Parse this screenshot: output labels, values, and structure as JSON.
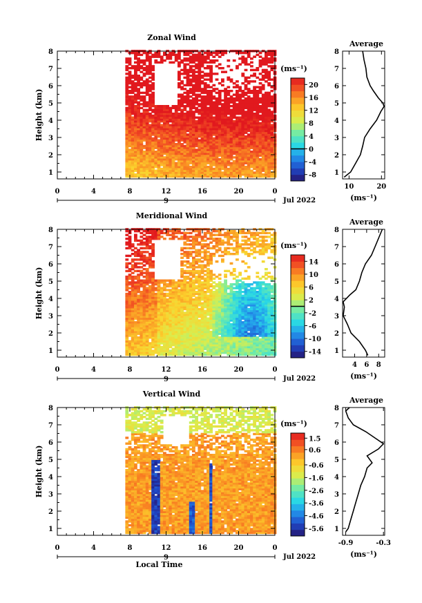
{
  "chart_data": [
    {
      "type": "heatmap",
      "title": "Zonal Wind",
      "ylabel": "Height (km)",
      "unit": "(ms⁻¹)",
      "x_ticks": [
        "0",
        "4",
        "8",
        "12",
        "16",
        "20",
        "0"
      ],
      "xlim": [
        0,
        24
      ],
      "ylim": [
        0.6,
        8
      ],
      "y_ticks": [
        1,
        2,
        3,
        4,
        5,
        6,
        7,
        8
      ],
      "data_start_hour": 7.5,
      "day_label": "9",
      "date_label": "Jul 2022",
      "colorbar": {
        "min": -10,
        "max": 22,
        "tick_values": [
          -8,
          -4,
          0,
          4,
          8,
          12,
          16,
          20
        ],
        "tick_labels": [
          "-8",
          "-4",
          "0",
          "4",
          "8",
          "12",
          "16",
          "20"
        ],
        "zero_line": 0
      },
      "average": {
        "title": "Average",
        "xlabel": "(ms⁻¹)",
        "x_ticks": [
          10,
          20
        ],
        "xlim": [
          8,
          21
        ],
        "height": [
          0.7,
          1.0,
          1.5,
          2.0,
          2.5,
          3.0,
          3.5,
          4.0,
          4.5,
          4.8,
          5.0,
          5.3,
          5.7,
          6.0,
          6.5,
          7.0,
          7.5,
          8.0
        ],
        "value": [
          8.5,
          10.5,
          12.0,
          13.5,
          14.2,
          14.8,
          16.5,
          18.5,
          19.8,
          20.8,
          20.4,
          19.0,
          17.5,
          16.5,
          15.5,
          15.2,
          14.6,
          14.2
        ]
      }
    },
    {
      "type": "heatmap",
      "title": "Meridional Wind",
      "ylabel": "Height (km)",
      "unit": "(ms⁻¹)",
      "x_ticks": [
        "0",
        "4",
        "8",
        "12",
        "16",
        "20",
        "0"
      ],
      "xlim": [
        0,
        24
      ],
      "ylim": [
        0.6,
        8
      ],
      "y_ticks": [
        1,
        2,
        3,
        4,
        5,
        6,
        7,
        8
      ],
      "data_start_hour": 7.5,
      "day_label": "9",
      "date_label": "Jul 2022",
      "colorbar": {
        "min": -16,
        "max": 16,
        "tick_values": [
          -14,
          -10,
          -6,
          -2,
          2,
          6,
          10,
          14
        ],
        "tick_labels": [
          "-14",
          "-10",
          "-6",
          "-2",
          "2",
          "6",
          "10",
          "14"
        ],
        "zero_line": 0
      },
      "average": {
        "title": "Average",
        "xlabel": "(ms⁻¹)",
        "x_ticks": [
          4,
          6,
          8
        ],
        "xlim": [
          2,
          9
        ],
        "height": [
          0.7,
          1.0,
          1.5,
          2.0,
          2.5,
          3.0,
          3.5,
          3.8,
          4.2,
          4.5,
          5.0,
          5.5,
          6.0,
          6.5,
          7.0,
          7.5,
          8.0
        ],
        "value": [
          6.2,
          5.8,
          4.8,
          3.4,
          2.8,
          2.1,
          2.3,
          2.1,
          3.2,
          4.2,
          4.8,
          5.2,
          5.8,
          6.8,
          7.4,
          8.0,
          8.6
        ]
      }
    },
    {
      "type": "heatmap",
      "title": "Vertical Wind",
      "ylabel": "Height (km)",
      "xlabel": "Local Time",
      "unit": "(ms⁻¹)",
      "x_ticks": [
        "0",
        "4",
        "8",
        "12",
        "16",
        "20",
        "0"
      ],
      "xlim": [
        0,
        24
      ],
      "ylim": [
        0.6,
        8
      ],
      "y_ticks": [
        1,
        2,
        3,
        4,
        5,
        6,
        7,
        8
      ],
      "data_start_hour": 7.5,
      "day_label": "9",
      "date_label": "Jul 2022",
      "colorbar": {
        "min": -6.2,
        "max": 1.9,
        "tick_values": [
          -5.6,
          -4.6,
          -3.6,
          -2.6,
          -1.6,
          -0.6,
          0.6,
          1.5
        ],
        "tick_labels": [
          "-5.6",
          "-4.6",
          "-3.6",
          "-2.6",
          "-1.6",
          "-0.6",
          "0.6",
          "1.5"
        ],
        "zero_line": null
      },
      "average": {
        "title": "Average",
        "xlabel": "(ms⁻¹)",
        "x_ticks": [
          -0.9,
          -0.3
        ],
        "x_tick_labels": [
          "-0.9",
          "-0.3"
        ],
        "xlim": [
          -0.95,
          -0.28
        ],
        "height": [
          0.8,
          1.0,
          1.5,
          2.0,
          2.5,
          3.0,
          3.5,
          4.0,
          4.5,
          4.8,
          5.2,
          5.6,
          5.9,
          6.2,
          6.6,
          7.0,
          7.4,
          7.8,
          8.0
        ],
        "value": [
          -0.9,
          -0.86,
          -0.82,
          -0.78,
          -0.74,
          -0.7,
          -0.66,
          -0.6,
          -0.56,
          -0.48,
          -0.56,
          -0.38,
          -0.3,
          -0.42,
          -0.58,
          -0.78,
          -0.86,
          -0.9,
          -0.84
        ]
      }
    }
  ]
}
